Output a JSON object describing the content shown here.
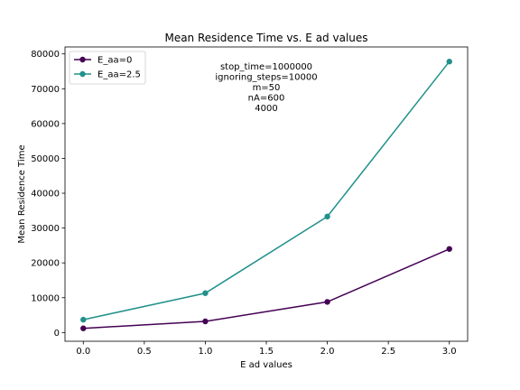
{
  "chart_data": {
    "type": "line",
    "title": "Mean Residence Time vs. E ad values",
    "xlabel": "E ad values",
    "ylabel": "Mean Residence Time",
    "x": [
      0,
      1,
      2,
      3
    ],
    "series": [
      {
        "name": "E_aa=0",
        "color": "#440154",
        "values": [
          1200,
          3200,
          8800,
          24000
        ]
      },
      {
        "name": "E_aa=2.5",
        "color": "#21918c",
        "values": [
          3700,
          11300,
          33300,
          77800
        ]
      }
    ],
    "xlim": [
      -0.15,
      3.15
    ],
    "ylim": [
      -2500,
      82000
    ],
    "xticks": [
      "0.0",
      "0.5",
      "1.0",
      "1.5",
      "2.0",
      "2.5",
      "3.0"
    ],
    "yticks": [
      "0",
      "10000",
      "20000",
      "30000",
      "40000",
      "50000",
      "60000",
      "70000",
      "80000"
    ],
    "grid": false,
    "legend_position": "upper-left",
    "annotation_lines": [
      "stop_time=1000000",
      "ignoring_steps=10000",
      "m=50",
      "nA=600",
      "4000"
    ]
  }
}
